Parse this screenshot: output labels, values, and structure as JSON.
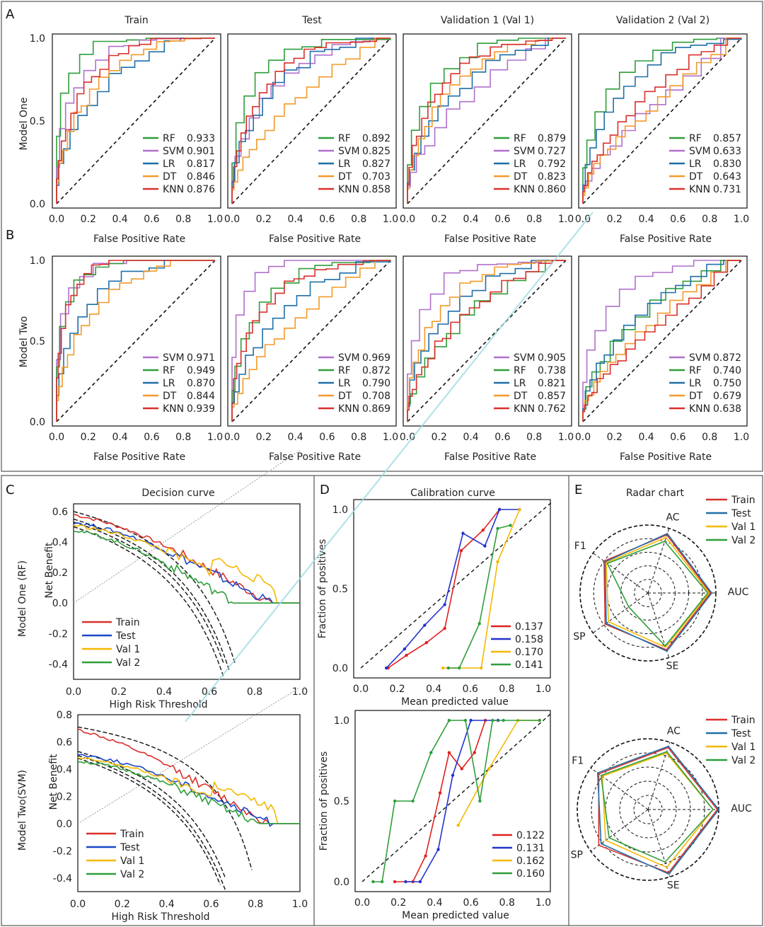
{
  "colors": {
    "green": "#2e9e3a",
    "purple": "#b070cc",
    "blue": "#1f6fa8",
    "orange": "#f39a2a",
    "red": "#d9302c",
    "cal_blue": "#2233cc",
    "cal_red": "#e02020",
    "yellow": "#f5b800",
    "dcblue": "#1a48c8"
  },
  "sections": {
    "A": "A",
    "B": "B",
    "C": "C",
    "D": "D",
    "E": "E"
  },
  "chart_data": [
    {
      "type": "line",
      "section": "A",
      "row_label": "Model One",
      "xlabel": "False Positive Rate",
      "ylabel": "",
      "xlim": [
        0,
        1
      ],
      "ylim": [
        0,
        1
      ],
      "xticks": [
        "0.0",
        "0.2",
        "0.4",
        "0.6",
        "0.8",
        "1.0"
      ],
      "yticks": [
        "0.0",
        "0.5",
        "1.0"
      ],
      "panels": [
        {
          "title": "Train",
          "legend": [
            [
              "RF",
              "0.933"
            ],
            [
              "SVM",
              "0.901"
            ],
            [
              "LR",
              "0.817"
            ],
            [
              "DT",
              "0.846"
            ],
            [
              "KNN",
              "0.876"
            ]
          ]
        },
        {
          "title": "Test",
          "legend": [
            [
              "RF",
              "0.892"
            ],
            [
              "SVM",
              "0.825"
            ],
            [
              "LR",
              "0.827"
            ],
            [
              "DT",
              "0.703"
            ],
            [
              "KNN",
              "0.858"
            ]
          ]
        },
        {
          "title": "Validation 1 (Val 1)",
          "legend": [
            [
              "RF",
              "0.879"
            ],
            [
              "SVM",
              "0.727"
            ],
            [
              "LR",
              "0.792"
            ],
            [
              "DT",
              "0.823"
            ],
            [
              "KNN",
              "0.860"
            ]
          ]
        },
        {
          "title": "Validation 2 (Val 2)",
          "legend": [
            [
              "RF",
              "0.857"
            ],
            [
              "SVM",
              "0.633"
            ],
            [
              "LR",
              "0.830"
            ],
            [
              "DT",
              "0.643"
            ],
            [
              "KNN",
              "0.731"
            ]
          ]
        }
      ]
    },
    {
      "type": "line",
      "section": "B",
      "row_label": "Model Two",
      "xlabel": "False Positive Rate",
      "ylabel": "",
      "xlim": [
        0,
        1
      ],
      "ylim": [
        0,
        1
      ],
      "xticks": [
        "0.0",
        "0.2",
        "0.4",
        "0.6",
        "0.8",
        "1.0"
      ],
      "yticks": [
        "0.0",
        "0.5",
        "1.0"
      ],
      "panels": [
        {
          "title": "",
          "legend": [
            [
              "SVM",
              "0.971"
            ],
            [
              "RF",
              "0.949"
            ],
            [
              "LR",
              "0.870"
            ],
            [
              "DT",
              "0.844"
            ],
            [
              "KNN",
              "0.939"
            ]
          ]
        },
        {
          "title": "",
          "legend": [
            [
              "SVM",
              "0.969"
            ],
            [
              "RF",
              "0.872"
            ],
            [
              "LR",
              "0.790"
            ],
            [
              "DT",
              "0.708"
            ],
            [
              "KNN",
              "0.869"
            ]
          ]
        },
        {
          "title": "",
          "legend": [
            [
              "SVM",
              "0.905"
            ],
            [
              "RF",
              "0.738"
            ],
            [
              "LR",
              "0.821"
            ],
            [
              "DT",
              "0.857"
            ],
            [
              "KNN",
              "0.762"
            ]
          ]
        },
        {
          "title": "",
          "legend": [
            [
              "SVM",
              "0.872"
            ],
            [
              "RF",
              "0.740"
            ],
            [
              "LR",
              "0.750"
            ],
            [
              "DT",
              "0.679"
            ],
            [
              "KNN",
              "0.638"
            ]
          ]
        }
      ]
    },
    {
      "type": "line",
      "section": "C",
      "title": "Decision curve",
      "xlabel": "High Risk Threshold",
      "ylabel": "Net Benefit",
      "panels": [
        {
          "row_label": "Model One (RF)",
          "xlim": [
            0,
            1
          ],
          "ylim": [
            -0.5,
            0.65
          ],
          "yticks": [
            "0.6",
            "0.4",
            "0.2",
            "0.0",
            "-0.2",
            "-0.4"
          ],
          "xticks": [
            "0.0",
            "0.2",
            "0.4",
            "0.6",
            "0.8",
            "1.0"
          ],
          "legend": [
            "Train",
            "Test",
            "Val 1",
            "Val 2"
          ]
        },
        {
          "row_label": "Model Two(SVM)",
          "xlim": [
            0,
            1
          ],
          "ylim": [
            -0.5,
            0.8
          ],
          "yticks": [
            "0.8",
            "0.6",
            "0.4",
            "0.2",
            "0.0",
            "-0.2",
            "-0.4"
          ],
          "xticks": [
            "0.0",
            "0.2",
            "0.4",
            "0.6",
            "0.8",
            "1.0"
          ],
          "legend": [
            "Train",
            "Test",
            "Val 1",
            "Val 2"
          ]
        }
      ]
    },
    {
      "type": "line",
      "section": "D",
      "title": "Calibration curve",
      "xlabel": "Mean predicted value",
      "ylabel": "Fraction of positives",
      "xticks": [
        "0.0",
        "0.2",
        "0.4",
        "0.6",
        "0.8",
        "1.0"
      ],
      "yticks": [
        "1.0",
        "0.5",
        "0.0"
      ],
      "panels": [
        {
          "legend": [
            "0.137",
            "0.158",
            "0.170",
            "0.141"
          ],
          "series": [
            {
              "name": "red",
              "values": [
                [
                  0.15,
                  0
                ],
                [
                  0.25,
                  0.08
                ],
                [
                  0.36,
                  0.16
                ],
                [
                  0.46,
                  0.25
                ],
                [
                  0.55,
                  0.74
                ],
                [
                  0.67,
                  0.87
                ],
                [
                  0.76,
                  1.0
                ]
              ]
            },
            {
              "name": "blue",
              "values": [
                [
                  0.14,
                  0
                ],
                [
                  0.24,
                  0.12
                ],
                [
                  0.35,
                  0.27
                ],
                [
                  0.46,
                  0.4
                ],
                [
                  0.56,
                  0.85
                ],
                [
                  0.68,
                  0.77
                ],
                [
                  0.76,
                  1.0
                ],
                [
                  0.87,
                  1.0
                ]
              ]
            },
            {
              "name": "yellow",
              "values": [
                [
                  0.45,
                  0
                ],
                [
                  0.66,
                  0
                ],
                [
                  0.75,
                  0.67
                ],
                [
                  0.87,
                  1.0
                ]
              ]
            },
            {
              "name": "green",
              "values": [
                [
                  0.48,
                  0
                ],
                [
                  0.54,
                  0
                ],
                [
                  0.65,
                  0.28
                ],
                [
                  0.75,
                  0.88
                ],
                [
                  0.82,
                  0.9
                ]
              ]
            }
          ]
        },
        {
          "legend": [
            "0.122",
            "0.131",
            "0.162",
            "0.160"
          ],
          "series": [
            {
              "name": "red",
              "values": [
                [
                  0.18,
                  0
                ],
                [
                  0.28,
                  0.0
                ],
                [
                  0.35,
                  0.16
                ],
                [
                  0.43,
                  0.55
                ],
                [
                  0.48,
                  0.8
                ],
                [
                  0.55,
                  0.7
                ],
                [
                  0.62,
                  0.8
                ],
                [
                  0.68,
                  1.0
                ]
              ]
            },
            {
              "name": "blue",
              "values": [
                [
                  0.24,
                  0
                ],
                [
                  0.32,
                  0
                ],
                [
                  0.42,
                  0.2
                ],
                [
                  0.5,
                  0.66
                ],
                [
                  0.6,
                  1.0
                ],
                [
                  0.75,
                  1.0
                ]
              ]
            },
            {
              "name": "yellow",
              "values": [
                [
                  0.53,
                  0.35
                ],
                [
                  0.7,
                  0.7
                ],
                [
                  0.86,
                  1.0
                ],
                [
                  0.98,
                  1.0
                ]
              ]
            },
            {
              "name": "green",
              "values": [
                [
                  0.06,
                  0
                ],
                [
                  0.11,
                  0
                ],
                [
                  0.18,
                  0.5
                ],
                [
                  0.28,
                  0.5
                ],
                [
                  0.38,
                  0.8
                ],
                [
                  0.48,
                  1.0
                ],
                [
                  0.57,
                  1.0
                ],
                [
                  0.65,
                  0.5
                ],
                [
                  0.72,
                  1.0
                ],
                [
                  0.78,
                  1.0
                ],
                [
                  0.98,
                  1.0
                ]
              ]
            }
          ]
        }
      ]
    },
    {
      "type": "radar",
      "section": "E",
      "title": "Radar chart",
      "axes": [
        "AC",
        "AUC",
        "SE",
        "SP",
        "F1"
      ],
      "panels": [
        {
          "legend": [
            "Train",
            "Test",
            "Val 1",
            "Val 2"
          ]
        },
        {
          "legend": [
            "Train",
            "Test",
            "Val 1",
            "Val 2"
          ]
        }
      ]
    }
  ]
}
